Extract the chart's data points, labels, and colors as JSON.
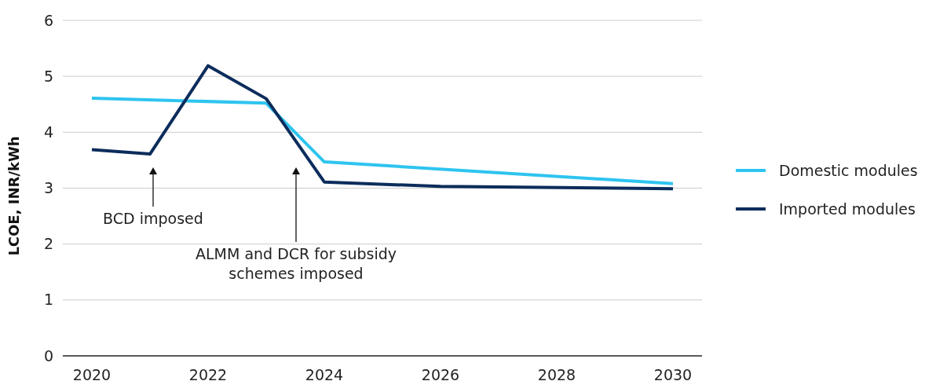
{
  "chart_data": {
    "type": "line",
    "ylabel": "LCOE, INR/kWh",
    "xlim": [
      2019.5,
      2030.5
    ],
    "xticks": [
      2020,
      2022,
      2024,
      2026,
      2028,
      2030
    ],
    "ylim": [
      0,
      6
    ],
    "yticks": [
      0,
      1,
      2,
      3,
      4,
      5,
      6
    ],
    "grid": "y",
    "legend": "right",
    "marker": "none",
    "line_style": "solid",
    "series": [
      {
        "name": "Domestic modules",
        "color": "#2ec4ef",
        "x": [
          2020,
          2023,
          2024,
          2030
        ],
        "values": [
          4.61,
          4.52,
          3.47,
          3.08
        ]
      },
      {
        "name": "Imported modules",
        "color": "#0c2d5c",
        "x": [
          2020,
          2021,
          2022,
          2023,
          2024,
          2026,
          2030
        ],
        "values": [
          3.69,
          3.61,
          5.19,
          4.6,
          3.11,
          3.03,
          2.99
        ]
      }
    ],
    "annotations": [
      "BCD imposed",
      "ALMM and DCR for subsidy schemes imposed"
    ]
  }
}
